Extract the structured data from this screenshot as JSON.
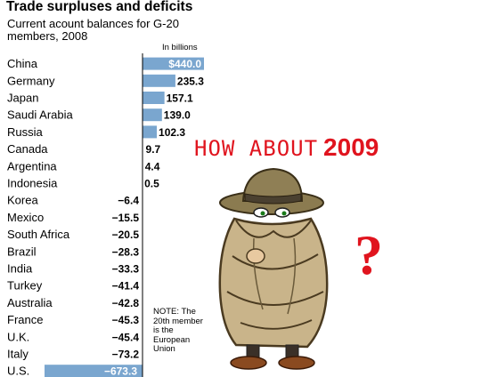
{
  "header": {
    "title": "Trade surpluses and deficits",
    "subtitle": "Current acount balances for G-20 members, 2008",
    "unit_label": "In billions"
  },
  "note": "NOTE: The 20th member is the European Union",
  "overlay": {
    "question_text": "HOW ABOUT",
    "year_text": "2009",
    "question_mark": "?"
  },
  "colors": {
    "bar": "#7aa6cf",
    "accent_red": "#e0141e"
  },
  "chart_data": {
    "type": "bar",
    "orientation": "horizontal",
    "title": "Trade surpluses and deficits",
    "subtitle": "Current acount balances for G-20 members, 2008",
    "unit": "In billions",
    "categories": [
      "China",
      "Germany",
      "Japan",
      "Saudi Arabia",
      "Russia",
      "Canada",
      "Argentina",
      "Indonesia",
      "Korea",
      "Mexico",
      "South Africa",
      "Brazil",
      "India",
      "Turkey",
      "Australia",
      "France",
      "U.K.",
      "Italy",
      "U.S."
    ],
    "values": [
      440.0,
      235.3,
      157.1,
      139.0,
      102.3,
      9.7,
      4.4,
      0.5,
      -6.4,
      -15.5,
      -20.5,
      -28.3,
      -33.3,
      -41.4,
      -42.8,
      -45.3,
      -45.4,
      -73.2,
      -673.3
    ],
    "value_labels": [
      "$440.0",
      "235.3",
      "157.1",
      "139.0",
      "102.3",
      "9.7",
      "4.4",
      "0.5",
      "−6.4",
      "−15.5",
      "−20.5",
      "−28.3",
      "−33.3",
      "−41.4",
      "−42.8",
      "−45.3",
      "−45.4",
      "−73.2",
      "−673.3"
    ],
    "bar_colored": [
      true,
      true,
      true,
      true,
      true,
      false,
      false,
      false,
      false,
      false,
      false,
      false,
      false,
      false,
      false,
      false,
      false,
      false,
      true
    ],
    "label_inside_bar": [
      true,
      false,
      false,
      false,
      false,
      false,
      false,
      false,
      false,
      false,
      false,
      false,
      false,
      false,
      false,
      false,
      false,
      false,
      true
    ],
    "grid": false
  }
}
